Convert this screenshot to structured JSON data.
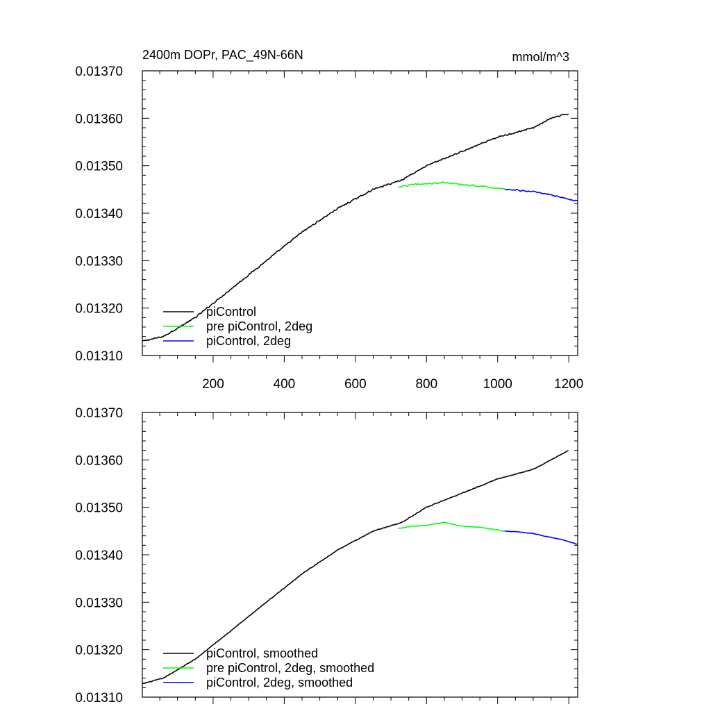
{
  "figure": {
    "title": "2400m DOPr, PAC_49N-66N",
    "units": "mmol/m^3"
  },
  "chart_data": [
    {
      "type": "line",
      "title": "2400m DOPr, PAC_49N-66N",
      "units_label": "mmol/m^3",
      "xlabel": "",
      "ylabel": "",
      "xlim": [
        1,
        1225
      ],
      "ylim": [
        0.0131,
        0.0137
      ],
      "x_ticks": [
        200,
        400,
        600,
        800,
        1000,
        1200
      ],
      "x_tick_labels": [
        "200",
        "400",
        "600",
        "800",
        "1000",
        "1200"
      ],
      "y_ticks": [
        0.0131,
        0.0132,
        0.0133,
        0.0134,
        0.0135,
        0.0136,
        0.0137
      ],
      "y_tick_labels": [
        "0.01310",
        "0.01320",
        "0.01330",
        "0.01340",
        "0.01350",
        "0.01360",
        "0.01370"
      ],
      "legend_position": "bottom-left",
      "series": [
        {
          "name": "piControl",
          "color": "#000000",
          "x": [
            1,
            60,
            150,
            250,
            350,
            450,
            550,
            650,
            730,
            800,
            900,
            1000,
            1100,
            1150,
            1200
          ],
          "values": [
            0.01313,
            0.01314,
            0.01318,
            0.01324,
            0.0133,
            0.01336,
            0.01341,
            0.01345,
            0.01347,
            0.0135,
            0.01353,
            0.01356,
            0.01358,
            0.0136,
            0.01361
          ]
        },
        {
          "name": "pre piControl, 2deg",
          "color": "#00ff00",
          "x": [
            720,
            760,
            800,
            850,
            900,
            950,
            1000,
            1020
          ],
          "values": [
            0.013455,
            0.01346,
            0.013462,
            0.013465,
            0.01346,
            0.013457,
            0.013452,
            0.01345
          ]
        },
        {
          "name": "piControl, 2deg",
          "color": "#0000ff",
          "x": [
            1020,
            1060,
            1100,
            1140,
            1180,
            1225
          ],
          "values": [
            0.01345,
            0.013448,
            0.013445,
            0.01344,
            0.013433,
            0.013425
          ]
        }
      ]
    },
    {
      "type": "line",
      "title": "",
      "xlabel": "",
      "ylabel": "",
      "xlim": [
        1,
        1225
      ],
      "ylim": [
        0.0131,
        0.0137
      ],
      "x_ticks": [
        200,
        400,
        600,
        800,
        1000,
        1200
      ],
      "x_tick_labels": [],
      "y_ticks": [
        0.0131,
        0.0132,
        0.0133,
        0.0134,
        0.0135,
        0.0136,
        0.0137
      ],
      "y_tick_labels": [
        "0.01310",
        "0.01320",
        "0.01330",
        "0.01340",
        "0.01350",
        "0.01360",
        "0.01370"
      ],
      "legend_position": "bottom-left",
      "series": [
        {
          "name": "piControl, smoothed",
          "color": "#000000",
          "x": [
            1,
            60,
            150,
            250,
            350,
            450,
            550,
            650,
            730,
            800,
            900,
            1000,
            1100,
            1150,
            1200
          ],
          "values": [
            0.013128,
            0.01314,
            0.01318,
            0.01324,
            0.0133,
            0.01336,
            0.01341,
            0.01345,
            0.013468,
            0.0135,
            0.01353,
            0.01356,
            0.01358,
            0.0136,
            0.01362
          ]
        },
        {
          "name": "pre piControl, 2deg, smoothed",
          "color": "#00ff00",
          "x": [
            720,
            760,
            800,
            850,
            900,
            950,
            1000,
            1020
          ],
          "values": [
            0.013455,
            0.01346,
            0.013462,
            0.013468,
            0.01346,
            0.013458,
            0.013452,
            0.01345
          ]
        },
        {
          "name": "piControl, 2deg, smoothed",
          "color": "#0000ff",
          "x": [
            1020,
            1060,
            1100,
            1140,
            1180,
            1225
          ],
          "values": [
            0.01345,
            0.013448,
            0.013445,
            0.013438,
            0.013432,
            0.013422
          ]
        }
      ]
    }
  ]
}
